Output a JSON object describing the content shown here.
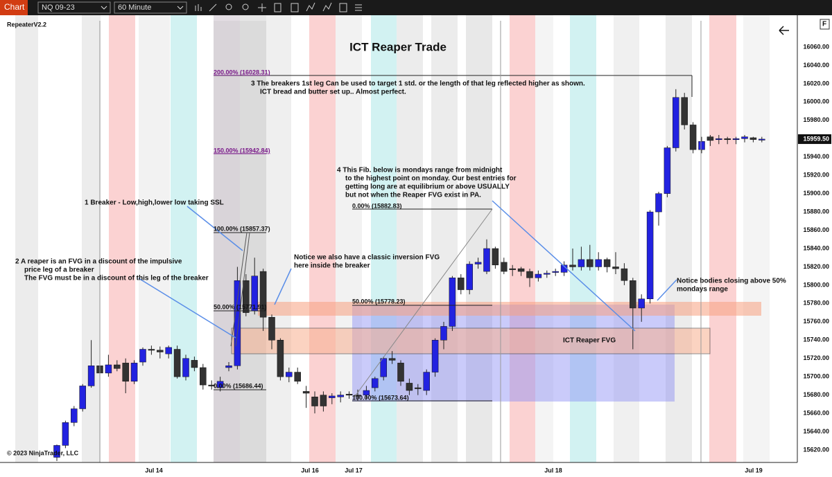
{
  "toolbar": {
    "app": "Chart",
    "instrument": "NQ 09-23",
    "interval": "60 Minute"
  },
  "indicator": "RepeaterV2.2",
  "copyright": "© 2023 NinjaTrader, LLC",
  "corner_button": "F",
  "chart_data": {
    "type": "candlestick",
    "title": "ICT Reaper Trade",
    "x_labels": [
      "Jul 14",
      "Jul 16",
      "Jul 17",
      "Jul 18",
      "Jul 19"
    ],
    "ylim": [
      15610,
      16072
    ],
    "yticks": [
      {
        "value": 16060,
        "label": "16060.00"
      },
      {
        "value": 16040,
        "label": "16040.00"
      },
      {
        "value": 16020,
        "label": "16020.00"
      },
      {
        "value": 16000,
        "label": "16000.00"
      },
      {
        "value": 15980,
        "label": "15980.00"
      },
      {
        "value": 15960,
        "label": "15960.00"
      },
      {
        "value": 15940,
        "label": "15940.00"
      },
      {
        "value": 15920,
        "label": "15920.00"
      },
      {
        "value": 15900,
        "label": "15900.00"
      },
      {
        "value": 15880,
        "label": "15880.00"
      },
      {
        "value": 15860,
        "label": "15860.00"
      },
      {
        "value": 15840,
        "label": "15840.00"
      },
      {
        "value": 15820,
        "label": "15820.00"
      },
      {
        "value": 15800,
        "label": "15800.00"
      },
      {
        "value": 15780,
        "label": "15780.00"
      },
      {
        "value": 15760,
        "label": "15760.00"
      },
      {
        "value": 15740,
        "label": "15740.00"
      },
      {
        "value": 15720,
        "label": "15720.00"
      },
      {
        "value": 15700,
        "label": "15700.00"
      },
      {
        "value": 15680,
        "label": "15680.00"
      },
      {
        "value": 15660,
        "label": "15660.00"
      },
      {
        "value": 15640,
        "label": "15640.00"
      },
      {
        "value": 15620,
        "label": "15620.00"
      }
    ],
    "last_price": {
      "value": 15959.5,
      "label": "15959.50"
    },
    "up_color": "#2222e0",
    "down_color": "#333333",
    "candles": [
      [
        15612,
        15626,
        15608,
        15625
      ],
      [
        15625,
        15652,
        15622,
        15650
      ],
      [
        15650,
        15668,
        15646,
        15665
      ],
      [
        15665,
        15692,
        15662,
        15690
      ],
      [
        15690,
        15740,
        15688,
        15712
      ],
      [
        15712,
        15716,
        15700,
        15704
      ],
      [
        15704,
        15724,
        15700,
        15713
      ],
      [
        15713,
        15718,
        15706,
        15709
      ],
      [
        15715,
        15720,
        15682,
        15695
      ],
      [
        15695,
        15718,
        15692,
        15715
      ],
      [
        15716,
        15732,
        15712,
        15730
      ],
      [
        15730,
        15734,
        15724,
        15729
      ],
      [
        15729,
        15733,
        15720,
        15727
      ],
      [
        15725,
        15734,
        15720,
        15732
      ],
      [
        15730,
        15734,
        15698,
        15700
      ],
      [
        15700,
        15724,
        15696,
        15720
      ],
      [
        15718,
        15722,
        15706,
        15710
      ],
      [
        15710,
        15714,
        15686,
        15691
      ],
      [
        15691,
        15696,
        15686,
        15690
      ],
      [
        15688,
        15700,
        15684,
        15695
      ],
      [
        15710,
        15716,
        15706,
        15712
      ],
      [
        15712,
        15820,
        15708,
        15805
      ],
      [
        15805,
        15812,
        15766,
        15770
      ],
      [
        15772,
        15830,
        15768,
        15810
      ],
      [
        15815,
        15818,
        15750,
        15765
      ],
      [
        15765,
        15768,
        15730,
        15740
      ],
      [
        15740,
        15742,
        15696,
        15700
      ],
      [
        15700,
        15710,
        15694,
        15705
      ],
      [
        15705,
        15710,
        15692,
        15695
      ],
      [
        15684,
        15690,
        15666,
        15682
      ],
      [
        15678,
        15684,
        15660,
        15668
      ],
      [
        15680,
        15684,
        15662,
        15668
      ],
      [
        15677,
        15682,
        15670,
        15679
      ],
      [
        15678,
        15684,
        15672,
        15680
      ],
      [
        15681,
        15684,
        15676,
        15680
      ],
      [
        15680,
        15686,
        15674,
        15679
      ],
      [
        15680,
        15690,
        15676,
        15685
      ],
      [
        15688,
        15700,
        15684,
        15698
      ],
      [
        15700,
        15722,
        15696,
        15720
      ],
      [
        15720,
        15728,
        15714,
        15718
      ],
      [
        15715,
        15718,
        15690,
        15695
      ],
      [
        15693,
        15698,
        15680,
        15685
      ],
      [
        15688,
        15692,
        15680,
        15687
      ],
      [
        15685,
        15708,
        15680,
        15705
      ],
      [
        15705,
        15742,
        15700,
        15740
      ],
      [
        15740,
        15760,
        15730,
        15755
      ],
      [
        15755,
        15810,
        15750,
        15808
      ],
      [
        15808,
        15812,
        15790,
        15795
      ],
      [
        15795,
        15826,
        15790,
        15823
      ],
      [
        15823,
        15830,
        15818,
        15825
      ],
      [
        15815,
        15850,
        15812,
        15840
      ],
      [
        15840,
        15842,
        15818,
        15822
      ],
      [
        15825,
        15830,
        15812,
        15815
      ],
      [
        15818,
        15822,
        15810,
        15817
      ],
      [
        15818,
        15820,
        15810,
        15815
      ],
      [
        15815,
        15818,
        15798,
        15808
      ],
      [
        15808,
        15816,
        15804,
        15812
      ],
      [
        15812,
        15816,
        15808,
        15813
      ],
      [
        15814,
        15818,
        15810,
        15815
      ],
      [
        15814,
        15826,
        15810,
        15822
      ],
      [
        15822,
        15840,
        15816,
        15820
      ],
      [
        15820,
        15842,
        15816,
        15828
      ],
      [
        15828,
        15844,
        15816,
        15820
      ],
      [
        15820,
        15836,
        15816,
        15828
      ],
      [
        15828,
        15830,
        15814,
        15820
      ],
      [
        15820,
        15836,
        15812,
        15818
      ],
      [
        15818,
        15824,
        15800,
        15805
      ],
      [
        15805,
        15808,
        15730,
        15775
      ],
      [
        15775,
        15790,
        15760,
        15785
      ],
      [
        15785,
        15882,
        15780,
        15880
      ],
      [
        15880,
        15902,
        15865,
        15900
      ],
      [
        15900,
        15952,
        15896,
        15950
      ],
      [
        15950,
        16014,
        15946,
        16005
      ],
      [
        16005,
        16010,
        15970,
        15975
      ],
      [
        15975,
        15978,
        15944,
        15948
      ],
      [
        15948,
        15962,
        15944,
        15957
      ],
      [
        15962,
        15964,
        15952,
        15958
      ],
      [
        15959,
        15964,
        15954,
        15960
      ],
      [
        15960,
        15962,
        15954,
        15959
      ],
      [
        15959,
        15962,
        15954,
        15960
      ],
      [
        15960,
        15964,
        15956,
        15962
      ],
      [
        15961,
        15962,
        15956,
        15959
      ],
      [
        15959,
        15962,
        15956,
        15959.5
      ]
    ],
    "fib_labels": [
      "200.00% (16028.31)",
      "150.00% (15942.84)",
      "100.00% (15857.37)",
      "50.00% (15771.91)",
      "0.00% (15686.44)",
      "0.00% (15882.83)",
      "50.00% (15778.23)",
      "100.00% (15673.64)"
    ],
    "annotations": [
      "1   Breaker - Low,high,lower low taking SSL",
      "2   A reaper is an FVG in a discount of the impulsive",
      "price leg of a breaker",
      "The FVG must be in a discount of this leg of the breaker",
      "3   The breakers 1st leg Can be used to target 1 std. or the length of that leg reflected higher as shown.",
      "ICT bread and butter set up.. Almost perfect.",
      "4   This Fib. below is mondays range from midnight",
      "to the highest point on monday. Our best entries for",
      "getting long are at equilibrium or above USUALLY",
      "but not when the Reaper FVG exist in PA.",
      "Notice we also have a classic inversion FVG",
      "here inside the breaker",
      "Notice bodies closing above 50%",
      "mondays range",
      "ICT Reaper FVG"
    ]
  }
}
